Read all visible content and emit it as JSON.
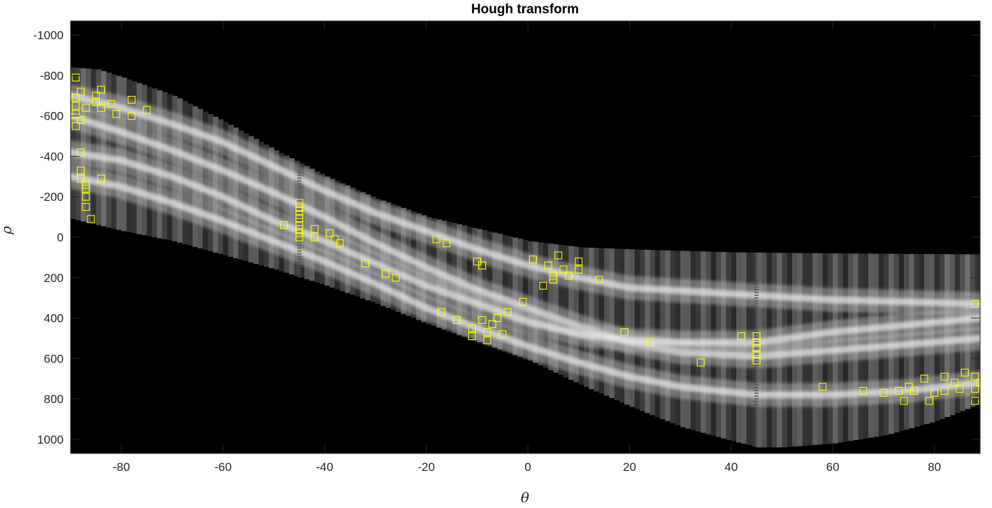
{
  "chart_data": {
    "type": "heatmap",
    "title": "Hough transform",
    "xlabel": "θ",
    "ylabel": "ρ",
    "xlim": [
      -90,
      89
    ],
    "ylim": [
      -1070,
      1070
    ],
    "y_reversed": true,
    "colormap": "gray",
    "xticks": [
      -80,
      -60,
      -40,
      -20,
      0,
      20,
      40,
      60,
      80
    ],
    "yticks": [
      -1000,
      -800,
      -600,
      -400,
      -200,
      0,
      200,
      400,
      600,
      800,
      1000
    ],
    "background_color": "#000000",
    "peak_color": "#ffff00",
    "band": {
      "upper_edge": [
        [
          -90,
          -840
        ],
        [
          -85,
          -830
        ],
        [
          -80,
          -790
        ],
        [
          -70,
          -700
        ],
        [
          -60,
          -570
        ],
        [
          -50,
          -430
        ],
        [
          -40,
          -300
        ],
        [
          -30,
          -190
        ],
        [
          -20,
          -100
        ],
        [
          -10,
          -40
        ],
        [
          0,
          20
        ],
        [
          10,
          50
        ],
        [
          20,
          60
        ],
        [
          40,
          75
        ],
        [
          60,
          80
        ],
        [
          89,
          85
        ]
      ],
      "lower_edge": [
        [
          -90,
          -90
        ],
        [
          -80,
          -30
        ],
        [
          -70,
          20
        ],
        [
          -60,
          90
        ],
        [
          -50,
          160
        ],
        [
          -40,
          240
        ],
        [
          -30,
          330
        ],
        [
          -20,
          430
        ],
        [
          -10,
          520
        ],
        [
          0,
          610
        ],
        [
          10,
          730
        ],
        [
          20,
          840
        ],
        [
          30,
          940
        ],
        [
          40,
          1010
        ],
        [
          45,
          1040
        ],
        [
          50,
          1040
        ],
        [
          60,
          1020
        ],
        [
          70,
          980
        ],
        [
          80,
          910
        ],
        [
          89,
          820
        ]
      ],
      "ridges": [
        [
          [
            -90,
            -700
          ],
          [
            -80,
            -640
          ],
          [
            -70,
            -560
          ],
          [
            -60,
            -470
          ],
          [
            -50,
            -350
          ],
          [
            -40,
            -230
          ],
          [
            -30,
            -120
          ],
          [
            -20,
            -30
          ],
          [
            -10,
            60
          ],
          [
            0,
            140
          ],
          [
            10,
            200
          ],
          [
            20,
            250
          ],
          [
            40,
            280
          ],
          [
            60,
            310
          ],
          [
            89,
            330
          ]
        ],
        [
          [
            -90,
            -600
          ],
          [
            -80,
            -520
          ],
          [
            -70,
            -430
          ],
          [
            -60,
            -330
          ],
          [
            -50,
            -220
          ],
          [
            -40,
            -100
          ],
          [
            -30,
            30
          ],
          [
            -20,
            150
          ],
          [
            -10,
            260
          ],
          [
            0,
            350
          ],
          [
            10,
            440
          ],
          [
            20,
            520
          ],
          [
            30,
            570
          ],
          [
            45,
            590
          ],
          [
            60,
            560
          ],
          [
            75,
            530
          ],
          [
            89,
            500
          ]
        ],
        [
          [
            -90,
            -300
          ],
          [
            -80,
            -250
          ],
          [
            -70,
            -170
          ],
          [
            -60,
            -80
          ],
          [
            -50,
            20
          ],
          [
            -40,
            120
          ],
          [
            -30,
            230
          ],
          [
            -20,
            350
          ],
          [
            -10,
            450
          ],
          [
            0,
            540
          ],
          [
            10,
            620
          ],
          [
            20,
            690
          ],
          [
            30,
            740
          ],
          [
            45,
            780
          ],
          [
            60,
            780
          ],
          [
            75,
            760
          ],
          [
            89,
            720
          ]
        ],
        [
          [
            -90,
            -420
          ],
          [
            -80,
            -380
          ],
          [
            -70,
            -300
          ],
          [
            -60,
            -200
          ],
          [
            -50,
            -80
          ],
          [
            -40,
            20
          ],
          [
            -30,
            130
          ],
          [
            -20,
            240
          ],
          [
            -10,
            330
          ],
          [
            0,
            420
          ],
          [
            10,
            480
          ],
          [
            20,
            510
          ],
          [
            30,
            520
          ],
          [
            45,
            520
          ],
          [
            60,
            470
          ],
          [
            89,
            400
          ]
        ]
      ],
      "striped_columns": [
        -45,
        45
      ]
    },
    "peaks": [
      [
        -89,
        -790
      ],
      [
        -89,
        -690
      ],
      [
        -89,
        -650
      ],
      [
        -89,
        -610
      ],
      [
        -89,
        -550
      ],
      [
        -88,
        -720
      ],
      [
        -88,
        -580
      ],
      [
        -88,
        -420
      ],
      [
        -88,
        -330
      ],
      [
        -88,
        -290
      ],
      [
        -87,
        -640
      ],
      [
        -87,
        -260
      ],
      [
        -87,
        -240
      ],
      [
        -87,
        -200
      ],
      [
        -87,
        -150
      ],
      [
        -86,
        -90
      ],
      [
        -85,
        -670
      ],
      [
        -85,
        -700
      ],
      [
        -84,
        -730
      ],
      [
        -84,
        -640
      ],
      [
        -84,
        -290
      ],
      [
        -82,
        -660
      ],
      [
        -81,
        -610
      ],
      [
        -78,
        -680
      ],
      [
        -78,
        -600
      ],
      [
        -75,
        -630
      ],
      [
        -48,
        -60
      ],
      [
        -45,
        -170
      ],
      [
        -45,
        -150
      ],
      [
        -45,
        -130
      ],
      [
        -45,
        -110
      ],
      [
        -45,
        -90
      ],
      [
        -45,
        -60
      ],
      [
        -45,
        -40
      ],
      [
        -45,
        -20
      ],
      [
        -45,
        0
      ],
      [
        -42,
        -40
      ],
      [
        -42,
        0
      ],
      [
        -39,
        -20
      ],
      [
        -38,
        10
      ],
      [
        -37,
        30
      ],
      [
        -32,
        130
      ],
      [
        -28,
        180
      ],
      [
        -26,
        200
      ],
      [
        -18,
        10
      ],
      [
        -16,
        30
      ],
      [
        -17,
        370
      ],
      [
        -14,
        410
      ],
      [
        -11,
        450
      ],
      [
        -11,
        490
      ],
      [
        -10,
        120
      ],
      [
        -9,
        140
      ],
      [
        -9,
        410
      ],
      [
        -8,
        470
      ],
      [
        -8,
        510
      ],
      [
        -7,
        430
      ],
      [
        -6,
        400
      ],
      [
        -5,
        480
      ],
      [
        -4,
        370
      ],
      [
        -1,
        320
      ],
      [
        1,
        110
      ],
      [
        3,
        240
      ],
      [
        4,
        140
      ],
      [
        5,
        190
      ],
      [
        5,
        210
      ],
      [
        6,
        90
      ],
      [
        7,
        160
      ],
      [
        8,
        190
      ],
      [
        10,
        120
      ],
      [
        10,
        160
      ],
      [
        14,
        210
      ],
      [
        19,
        470
      ],
      [
        24,
        520
      ],
      [
        34,
        620
      ],
      [
        42,
        490
      ],
      [
        45,
        490
      ],
      [
        45,
        520
      ],
      [
        45,
        550
      ],
      [
        45,
        580
      ],
      [
        45,
        610
      ],
      [
        58,
        740
      ],
      [
        66,
        760
      ],
      [
        70,
        770
      ],
      [
        73,
        760
      ],
      [
        74,
        810
      ],
      [
        75,
        740
      ],
      [
        76,
        760
      ],
      [
        78,
        700
      ],
      [
        79,
        810
      ],
      [
        80,
        770
      ],
      [
        82,
        690
      ],
      [
        82,
        760
      ],
      [
        84,
        720
      ],
      [
        85,
        750
      ],
      [
        86,
        670
      ],
      [
        88,
        690
      ],
      [
        88,
        750
      ],
      [
        88,
        810
      ],
      [
        88,
        330
      ],
      [
        89,
        720
      ]
    ]
  }
}
